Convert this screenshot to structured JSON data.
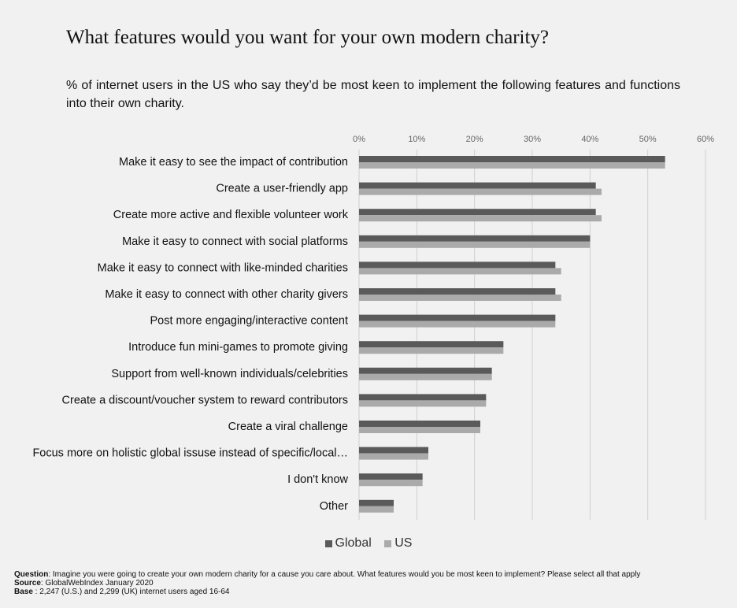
{
  "title": "What features would you want for your own modern charity?",
  "subtitle": "% of internet users in the US who say they’d be most keen to implement the following features and functions into their own charity.",
  "footnote": {
    "question_label": "Question",
    "question_text": ": Imagine you were going to create your own modern charity for a cause you care about. What features would you be most keen to implement? Please select all that apply",
    "source_label": "Source",
    "source_text": ": GlobalWebIndex January 2020",
    "base_label": "Base",
    "base_text": " : 2,247 (U.S.) and 2,299 (UK) internet users aged 16-64"
  },
  "colors": {
    "global": "#5a5a5a",
    "us": "#aaaaaa",
    "grid": "#cfcfcf",
    "background": "#f1f1f1"
  },
  "chart_data": {
    "type": "bar",
    "orientation": "horizontal",
    "title": "What features would you want for your own modern charity?",
    "xlim": [
      0,
      60
    ],
    "x_ticks": [
      "0%",
      "10%",
      "20%",
      "30%",
      "40%",
      "50%",
      "60%"
    ],
    "x_tick_values": [
      0,
      10,
      20,
      30,
      40,
      50,
      60
    ],
    "grid": true,
    "legend_position": "bottom",
    "categories": [
      "Make it easy to see the impact of contribution",
      "Create a user-friendly app",
      "Create more active and flexible volunteer work",
      "Make it easy to connect with social platforms",
      "Make it easy to connect with like-minded charities",
      "Make it easy to connect with other charity givers",
      "Post more engaging/interactive content",
      "Introduce fun mini-games to promote giving",
      "Support from well-known individuals/celebrities",
      "Create a discount/voucher system to reward contributors",
      "Create a viral challenge",
      "Focus more on holistic global issuse instead of specific/local…",
      "I don't know",
      "Other"
    ],
    "series": [
      {
        "name": "Global",
        "values": [
          53,
          41,
          41,
          40,
          34,
          34,
          34,
          25,
          23,
          22,
          21,
          12,
          11,
          6
        ]
      },
      {
        "name": "US",
        "values": [
          53,
          42,
          42,
          40,
          35,
          35,
          34,
          25,
          23,
          22,
          21,
          12,
          11,
          6
        ]
      }
    ]
  }
}
